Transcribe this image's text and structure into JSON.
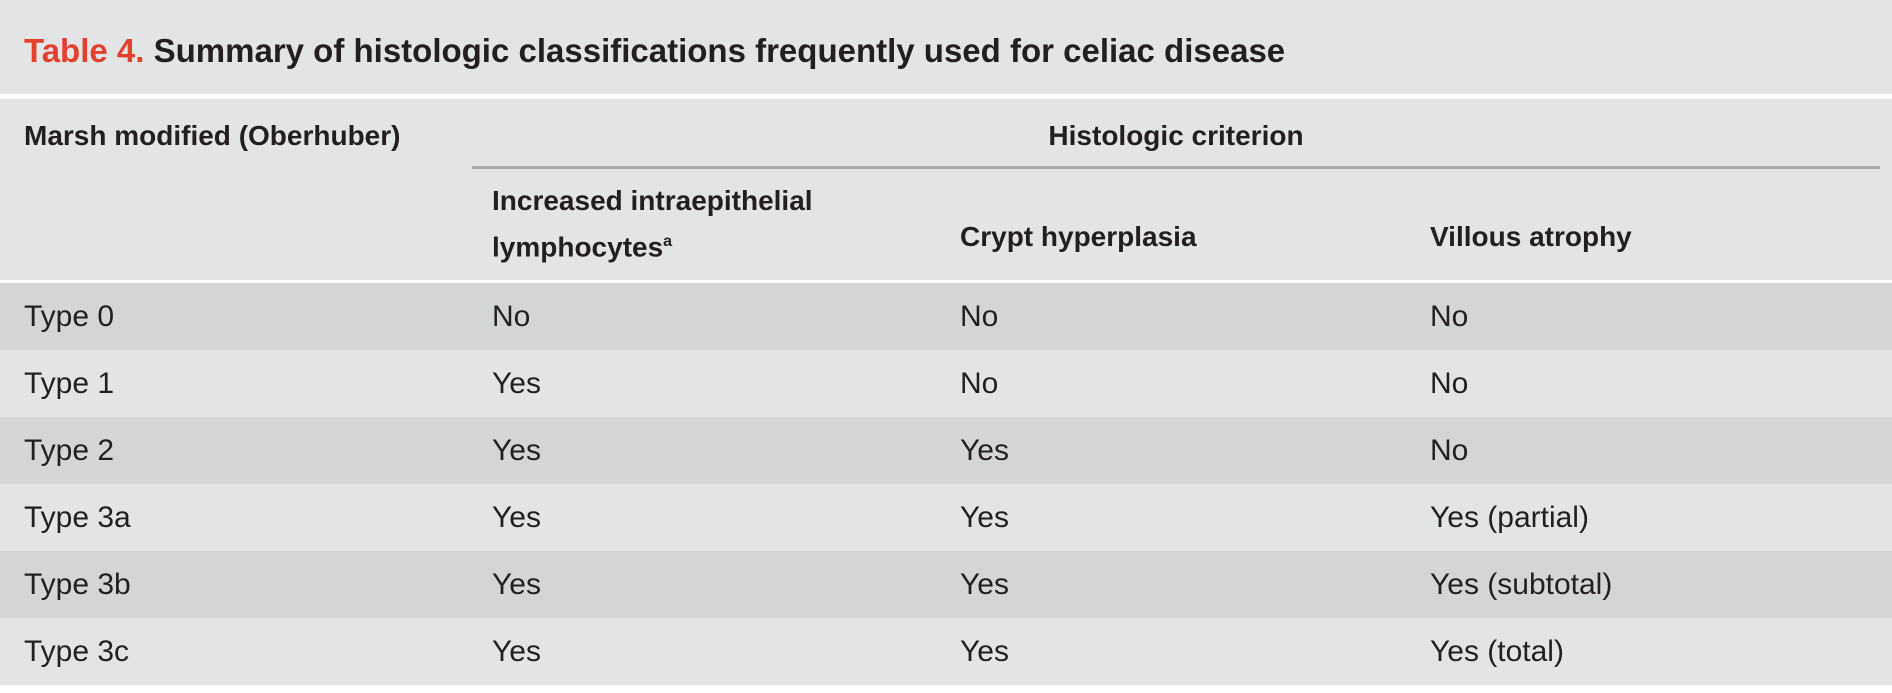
{
  "title": {
    "label": "Table 4.",
    "text": "Summary of histologic classifications frequently used for celiac disease"
  },
  "table": {
    "header": {
      "stub": "Marsh modified (Oberhuber)",
      "group": "Histologic criterion",
      "columns": [
        {
          "text": "Increased intraepithelial lymphocytes",
          "note": "a"
        },
        {
          "text": "Crypt hyperplasia"
        },
        {
          "text": "Villous atrophy"
        }
      ]
    },
    "rows": [
      [
        "Type 0",
        "No",
        "No",
        "No"
      ],
      [
        "Type 1",
        "Yes",
        "No",
        "No"
      ],
      [
        "Type 2",
        "Yes",
        "Yes",
        "No"
      ],
      [
        "Type 3a",
        "Yes",
        "Yes",
        "Yes (partial)"
      ],
      [
        "Type 3b",
        "Yes",
        "Yes",
        "Yes (subtotal)"
      ],
      [
        "Type 3c",
        "Yes",
        "Yes",
        "Yes (total)"
      ]
    ]
  }
}
